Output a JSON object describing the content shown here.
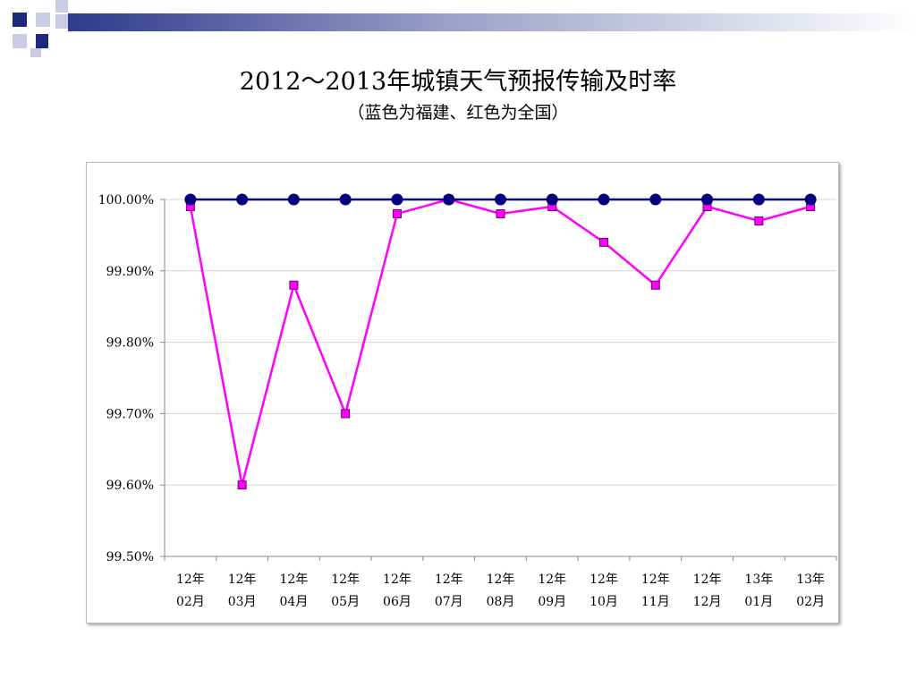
{
  "slide": {
    "title": "2012～2013年城镇天气预报传输及时率",
    "subtitle": "（蓝色为福建、红色为全国）"
  },
  "chart_data": {
    "type": "line",
    "categories": [
      [
        "12年",
        "02月"
      ],
      [
        "12年",
        "03月"
      ],
      [
        "12年",
        "04月"
      ],
      [
        "12年",
        "05月"
      ],
      [
        "12年",
        "06月"
      ],
      [
        "12年",
        "07月"
      ],
      [
        "12年",
        "08月"
      ],
      [
        "12年",
        "09月"
      ],
      [
        "12年",
        "10月"
      ],
      [
        "12年",
        "11月"
      ],
      [
        "12年",
        "12月"
      ],
      [
        "13年",
        "01月"
      ],
      [
        "13年",
        "02月"
      ]
    ],
    "series": [
      {
        "color": "#000080",
        "marker": "circle",
        "values": [
          100.0,
          100.0,
          100.0,
          100.0,
          100.0,
          100.0,
          100.0,
          100.0,
          100.0,
          100.0,
          100.0,
          100.0,
          100.0
        ]
      },
      {
        "color": "#FF00FF",
        "marker": "square",
        "values": [
          99.99,
          99.6,
          99.88,
          99.7,
          99.98,
          100.0,
          99.98,
          99.99,
          99.94,
          99.88,
          99.99,
          99.97,
          99.99
        ]
      }
    ],
    "ylim": [
      99.5,
      100.0
    ],
    "yticks": [
      99.5,
      99.6,
      99.7,
      99.8,
      99.9,
      100.0
    ],
    "ytick_labels": [
      "99.50%",
      "99.60%",
      "99.70%",
      "99.80%",
      "99.90%",
      "100.00%"
    ],
    "grid": true,
    "title": "",
    "xlabel": "",
    "ylabel": ""
  }
}
